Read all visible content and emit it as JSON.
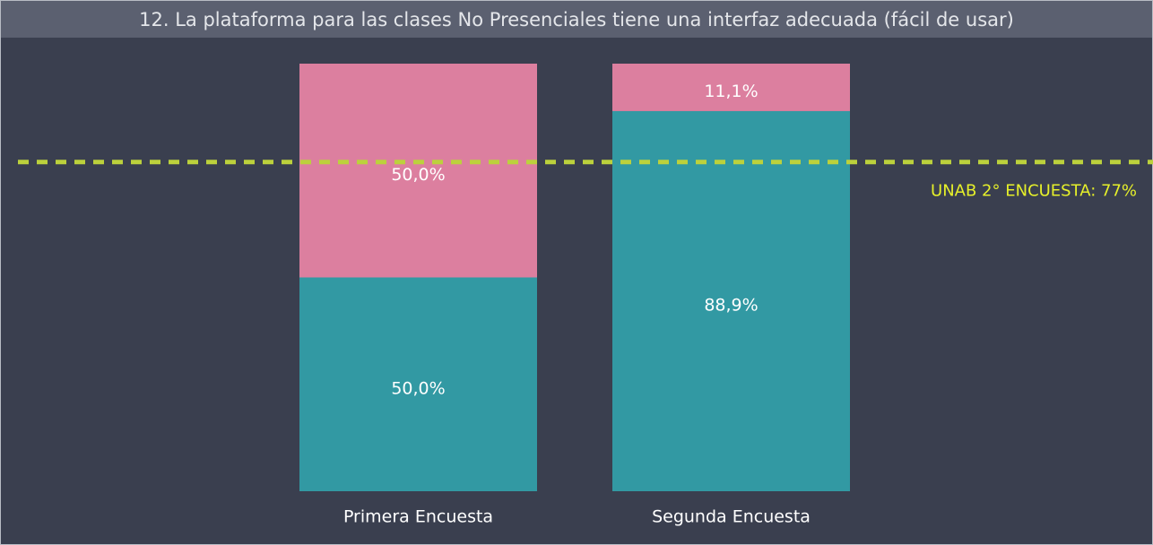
{
  "chart_data": {
    "type": "stacked_bar",
    "title": "12. La plataforma para las clases No Presenciales tiene una interfaz adecuada (fácil de usar)",
    "categories": [
      "Primera Encuesta",
      "Segunda Encuesta"
    ],
    "series": [
      {
        "color": "#3299a3",
        "values": [
          50,
          88.9
        ],
        "value_labels": [
          "50,0%",
          "88,9%"
        ]
      },
      {
        "color": "#dc7f9f",
        "values": [
          50,
          11.1
        ],
        "value_labels": [
          "50,0%",
          "11,1%"
        ]
      }
    ],
    "ylim": [
      0,
      100
    ],
    "reference_line": {
      "value": 77,
      "label": "UNAB 2° ENCUESTA: 77%",
      "color": "#bcd13c",
      "label_color": "#e6f02a"
    }
  }
}
